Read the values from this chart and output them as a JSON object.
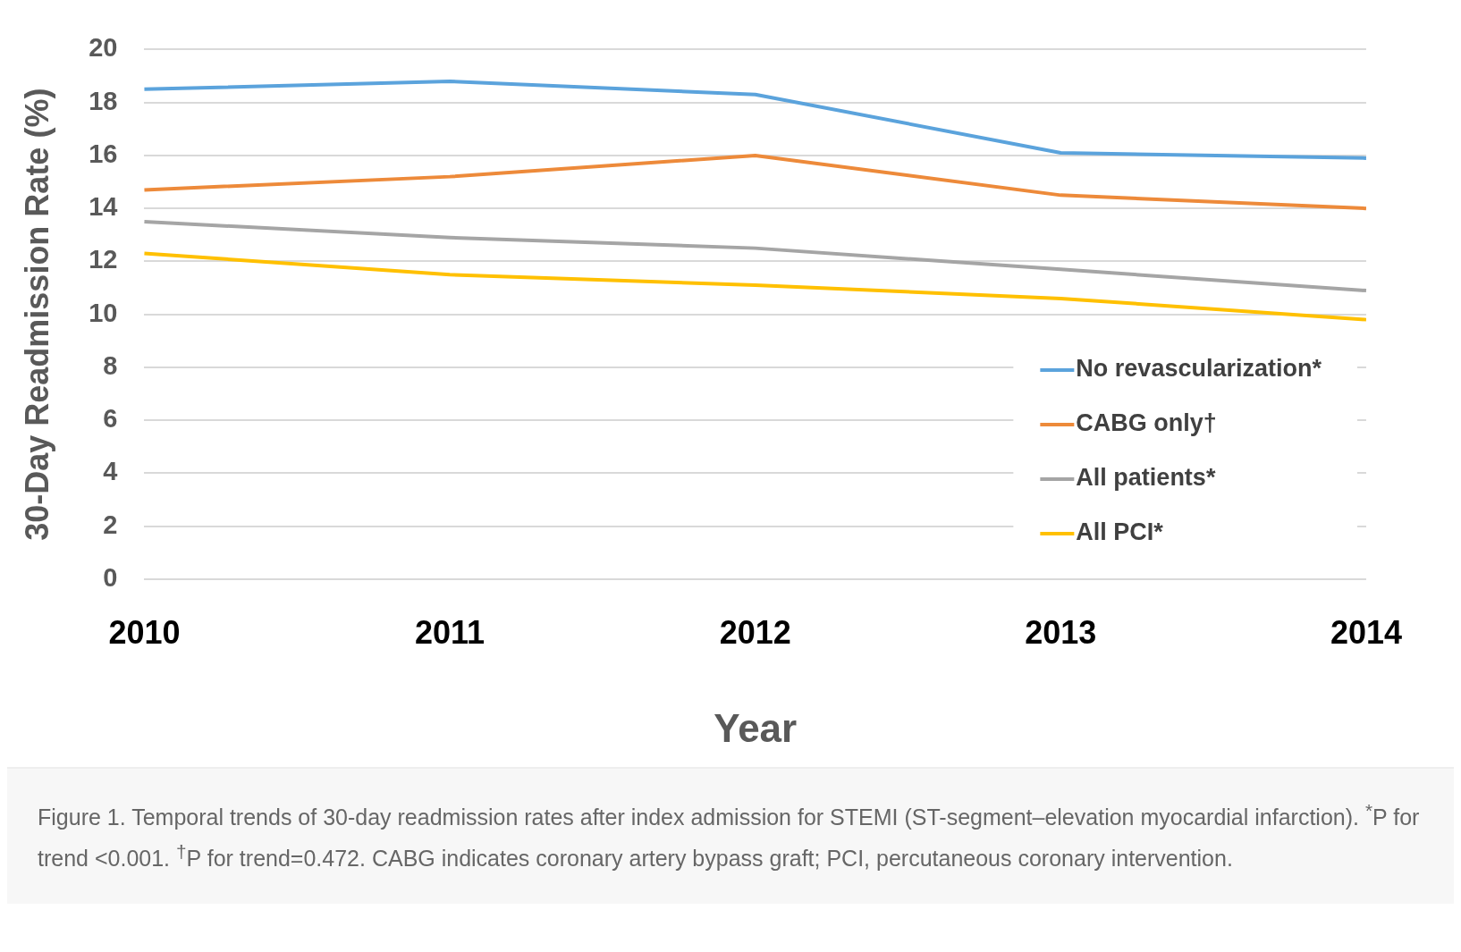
{
  "chart_data": {
    "type": "line",
    "xlabel": "Year",
    "ylabel": "30-Day Readmission Rate (%)",
    "categories": [
      "2010",
      "2011",
      "2012",
      "2013",
      "2014"
    ],
    "series": [
      {
        "name": "No revascularization*",
        "color": "#5ba3dc",
        "values": [
          18.5,
          18.8,
          18.3,
          16.1,
          15.9
        ]
      },
      {
        "name": "CABG only†",
        "color": "#ed8a3a",
        "values": [
          14.7,
          15.2,
          16.0,
          14.5,
          14.0
        ]
      },
      {
        "name": "All patients*",
        "color": "#a5a5a5",
        "values": [
          13.5,
          12.9,
          12.5,
          11.7,
          10.9
        ]
      },
      {
        "name": "All PCI*",
        "color": "#ffc000",
        "values": [
          12.3,
          11.5,
          11.1,
          10.6,
          9.8
        ]
      }
    ],
    "ylim": [
      0,
      20
    ],
    "yticks": [
      0,
      2,
      4,
      6,
      8,
      10,
      12,
      14,
      16,
      18,
      20
    ],
    "grid": "y",
    "legend": "bottom right",
    "marker": "none",
    "line_style": "solid",
    "annotations": [
      "Figure 1. Temporal trends of 30-day readmission rates after index admission for STEMI (ST-segment–elevation myocardial infarction). $^{*}$P for trend <0.001. $^{†}$P for trend=0.472. CABG indicates coronary artery bypass graft; PCI, percutaneous coronary intervention."
    ]
  }
}
